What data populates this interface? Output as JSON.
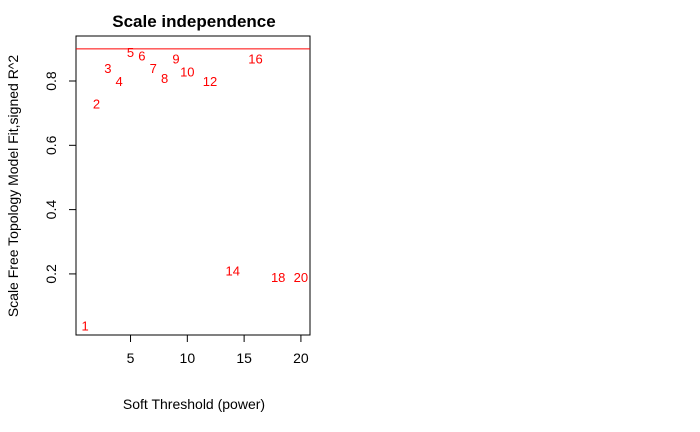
{
  "chart_data": {
    "type": "scatter",
    "title": "Scale independence",
    "xlabel": "Soft Threshold (power)",
    "ylabel": "Scale Free Topology Model Fit,signed R^2",
    "xlim": [
      0.2,
      20.8
    ],
    "ylim": [
      0.01,
      0.94
    ],
    "x_ticks": [
      5,
      10,
      15,
      20
    ],
    "y_ticks": [
      0.2,
      0.4,
      0.6,
      0.8
    ],
    "grid": false,
    "point_color": "#ff0000",
    "hline": {
      "y": 0.9,
      "color": "#ff0000"
    },
    "points": [
      {
        "x": 1,
        "y": 0.04,
        "label": "1"
      },
      {
        "x": 2,
        "y": 0.73,
        "label": "2"
      },
      {
        "x": 3,
        "y": 0.84,
        "label": "3"
      },
      {
        "x": 4,
        "y": 0.8,
        "label": "4"
      },
      {
        "x": 5,
        "y": 0.89,
        "label": "5"
      },
      {
        "x": 6,
        "y": 0.88,
        "label": "6"
      },
      {
        "x": 7,
        "y": 0.84,
        "label": "7"
      },
      {
        "x": 8,
        "y": 0.81,
        "label": "8"
      },
      {
        "x": 9,
        "y": 0.87,
        "label": "9"
      },
      {
        "x": 10,
        "y": 0.83,
        "label": "10"
      },
      {
        "x": 12,
        "y": 0.8,
        "label": "12"
      },
      {
        "x": 14,
        "y": 0.21,
        "label": "14"
      },
      {
        "x": 16,
        "y": 0.87,
        "label": "16"
      },
      {
        "x": 18,
        "y": 0.19,
        "label": "18"
      },
      {
        "x": 20,
        "y": 0.19,
        "label": "20"
      }
    ]
  }
}
